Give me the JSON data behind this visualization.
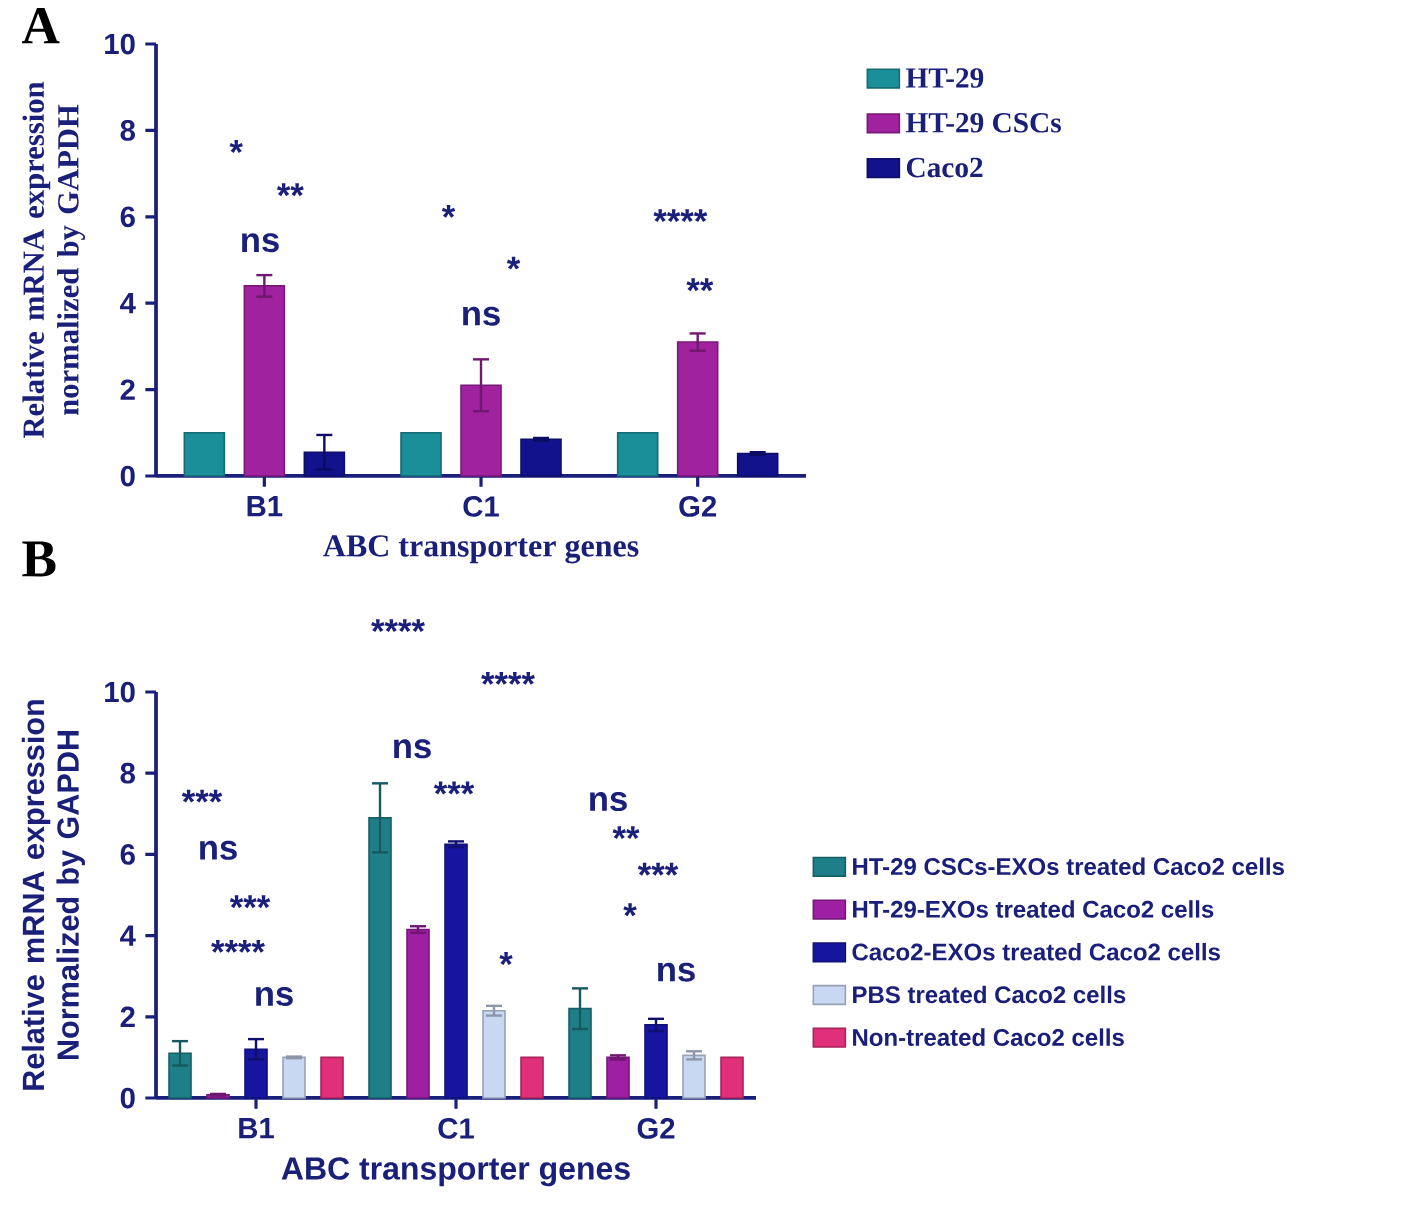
{
  "chart_data": [
    {
      "type": "bar",
      "title": "A",
      "xlabel": "ABC transporter genes",
      "ylabel": "Relative mRNA expression normalized by GAPDH",
      "categories": [
        "B1",
        "C1",
        "G2"
      ],
      "series": [
        {
          "name": "HT-29",
          "color": "#1b8f99",
          "values": [
            1,
            1,
            1
          ]
        },
        {
          "name": "HT-29 CSCs",
          "color": "#a0229f",
          "values": [
            4.4,
            2.1,
            3.1
          ],
          "errors": [
            0.25,
            0.6,
            0.2
          ]
        },
        {
          "name": "Caco2",
          "color": "#12128c",
          "values": [
            0.55,
            0.85,
            0.52
          ],
          "errors": [
            0.4,
            0.03,
            0.03
          ]
        }
      ],
      "ylim": [
        0,
        10
      ],
      "yticks": [
        0,
        2,
        4,
        6,
        8,
        10
      ],
      "legend": "right",
      "annotations": [
        "*",
        "**",
        "ns",
        "*",
        "*",
        "ns",
        "****",
        "**"
      ]
    },
    {
      "type": "bar",
      "title": "B",
      "xlabel": "ABC transporter genes",
      "ylabel": "Relative mRNA expression Normalized by GAPDH",
      "categories": [
        "B1",
        "C1",
        "G2"
      ],
      "series": [
        {
          "name": "HT-29 CSCs-EXOs treated Caco2 cells",
          "color": "#1f7f88",
          "values": [
            1.1,
            6.9,
            2.2
          ],
          "errors": [
            0.3,
            0.85,
            0.5
          ]
        },
        {
          "name": "HT-29-EXOs treated Caco2 cells",
          "color": "#9e1fa3",
          "values": [
            0.08,
            4.15,
            1.0
          ],
          "errors": [
            0.02,
            0.08,
            0.05
          ]
        },
        {
          "name": "Caco2-EXOs treated Caco2 cells",
          "color": "#1515a0",
          "values": [
            1.2,
            6.25,
            1.8
          ],
          "errors": [
            0.25,
            0.07,
            0.15
          ]
        },
        {
          "name": "PBS treated Caco2 cells",
          "color": "#c9d8f2",
          "values": [
            1.0,
            2.15,
            1.05
          ],
          "errors": [
            0.02,
            0.12,
            0.1
          ]
        },
        {
          "name": "Non-treated Caco2 cells",
          "color": "#e0307a",
          "values": [
            1.0,
            1.0,
            1.0
          ]
        }
      ],
      "ylim": [
        0,
        10
      ],
      "yticks": [
        0,
        2,
        4,
        6,
        8,
        10
      ],
      "legend": "right",
      "annotations": [
        "***",
        "ns",
        "***",
        "****",
        "ns",
        "****",
        "****",
        "ns",
        "***",
        "*",
        "ns",
        "**",
        "***",
        "*",
        "ns"
      ]
    }
  ]
}
